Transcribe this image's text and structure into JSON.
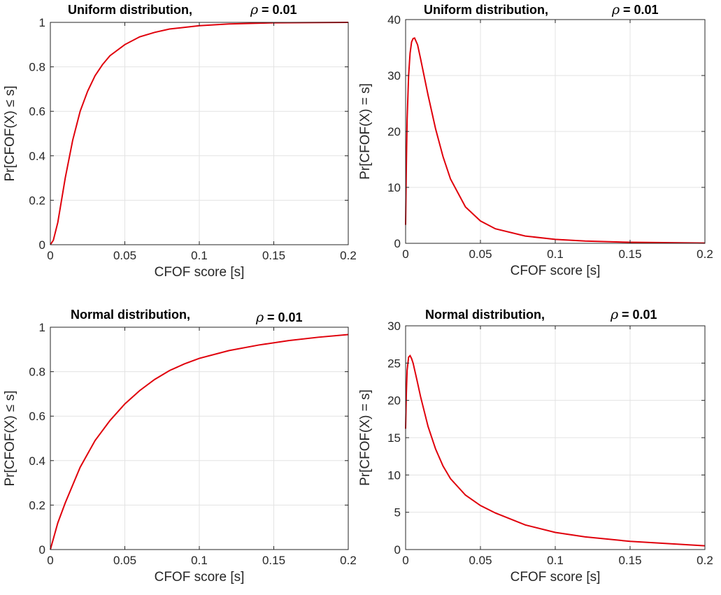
{
  "colors": {
    "curve": "#e0000b",
    "axis": "#262626",
    "grid": "#e3e3e3"
  },
  "chart_data": [
    {
      "type": "line",
      "title": "Uniform distribution,",
      "title_param_symbol": "ρ",
      "title_param_value": "= 0.01",
      "xlabel": "CFOF score [s]",
      "ylabel": "Pr[CFOF(X) ≤ s]",
      "xlim": [
        0,
        0.2
      ],
      "ylim": [
        0,
        1
      ],
      "xticks": [
        "0",
        "0.05",
        "0.1",
        "0.15",
        "0.2"
      ],
      "yticks": [
        "0",
        "0.2",
        "0.4",
        "0.6",
        "0.8",
        "1"
      ],
      "grid": true,
      "series": [
        {
          "x": [
            0,
            0.002,
            0.005,
            0.01,
            0.015,
            0.02,
            0.025,
            0.03,
            0.035,
            0.04,
            0.05,
            0.06,
            0.07,
            0.08,
            0.1,
            0.12,
            0.15,
            0.2
          ],
          "y": [
            0,
            0.02,
            0.1,
            0.3,
            0.47,
            0.6,
            0.69,
            0.76,
            0.81,
            0.85,
            0.9,
            0.935,
            0.955,
            0.97,
            0.985,
            0.993,
            0.998,
            1.0
          ]
        }
      ]
    },
    {
      "type": "line",
      "title": "Uniform distribution,",
      "title_param_symbol": "ρ",
      "title_param_value": "= 0.01",
      "xlabel": "CFOF score [s]",
      "ylabel": "Pr[CFOF(X) = s]",
      "xlim": [
        0,
        0.2
      ],
      "ylim": [
        0,
        40
      ],
      "xticks": [
        "0",
        "0.05",
        "0.1",
        "0.15",
        "0.2"
      ],
      "yticks": [
        "0",
        "10",
        "20",
        "30",
        "40"
      ],
      "grid": true,
      "series": [
        {
          "x": [
            0,
            0.0005,
            0.001,
            0.002,
            0.003,
            0.004,
            0.005,
            0.006,
            0.008,
            0.01,
            0.015,
            0.02,
            0.025,
            0.03,
            0.04,
            0.05,
            0.06,
            0.08,
            0.1,
            0.12,
            0.15,
            0.2
          ],
          "y": [
            3.3,
            14,
            22,
            30,
            34,
            36,
            36.6,
            36.7,
            35.5,
            33,
            26.5,
            20.5,
            15.5,
            11.5,
            6.5,
            4.0,
            2.6,
            1.3,
            0.7,
            0.4,
            0.18,
            0.05
          ]
        }
      ]
    },
    {
      "type": "line",
      "title": "Normal distribution,",
      "title_param_symbol": "ρ",
      "title_param_value": "= 0.01",
      "xlabel": "CFOF score [s]",
      "ylabel": "Pr[CFOF(X) ≤ s]",
      "xlim": [
        0,
        0.2
      ],
      "ylim": [
        0,
        1
      ],
      "xticks": [
        "0",
        "0.05",
        "0.1",
        "0.15",
        "0.2"
      ],
      "yticks": [
        "0",
        "0.2",
        "0.4",
        "0.6",
        "0.8",
        "1"
      ],
      "grid": true,
      "series": [
        {
          "x": [
            0,
            0.005,
            0.01,
            0.02,
            0.03,
            0.04,
            0.05,
            0.06,
            0.07,
            0.08,
            0.09,
            0.1,
            0.12,
            0.14,
            0.16,
            0.18,
            0.2
          ],
          "y": [
            0,
            0.12,
            0.21,
            0.37,
            0.49,
            0.58,
            0.655,
            0.715,
            0.765,
            0.805,
            0.835,
            0.86,
            0.895,
            0.92,
            0.94,
            0.955,
            0.967
          ]
        }
      ]
    },
    {
      "type": "line",
      "title": "Normal distribution,",
      "title_param_symbol": "ρ",
      "title_param_value": "= 0.01",
      "xlabel": "CFOF score [s]",
      "ylabel": "Pr[CFOF(X) = s]",
      "xlim": [
        0,
        0.2
      ],
      "ylim": [
        0,
        30
      ],
      "xticks": [
        "0",
        "0.05",
        "0.1",
        "0.15",
        "0.2"
      ],
      "yticks": [
        "0",
        "5",
        "10",
        "15",
        "20",
        "25",
        "30"
      ],
      "grid": true,
      "series": [
        {
          "x": [
            0,
            0.0005,
            0.001,
            0.002,
            0.003,
            0.004,
            0.005,
            0.0075,
            0.01,
            0.015,
            0.02,
            0.025,
            0.03,
            0.04,
            0.05,
            0.06,
            0.08,
            0.1,
            0.12,
            0.15,
            0.2
          ],
          "y": [
            16.2,
            21,
            24,
            25.8,
            26.0,
            25.6,
            25.0,
            22.8,
            20.5,
            16.5,
            13.5,
            11.2,
            9.5,
            7.3,
            5.9,
            4.9,
            3.3,
            2.3,
            1.7,
            1.1,
            0.5
          ]
        }
      ]
    }
  ]
}
